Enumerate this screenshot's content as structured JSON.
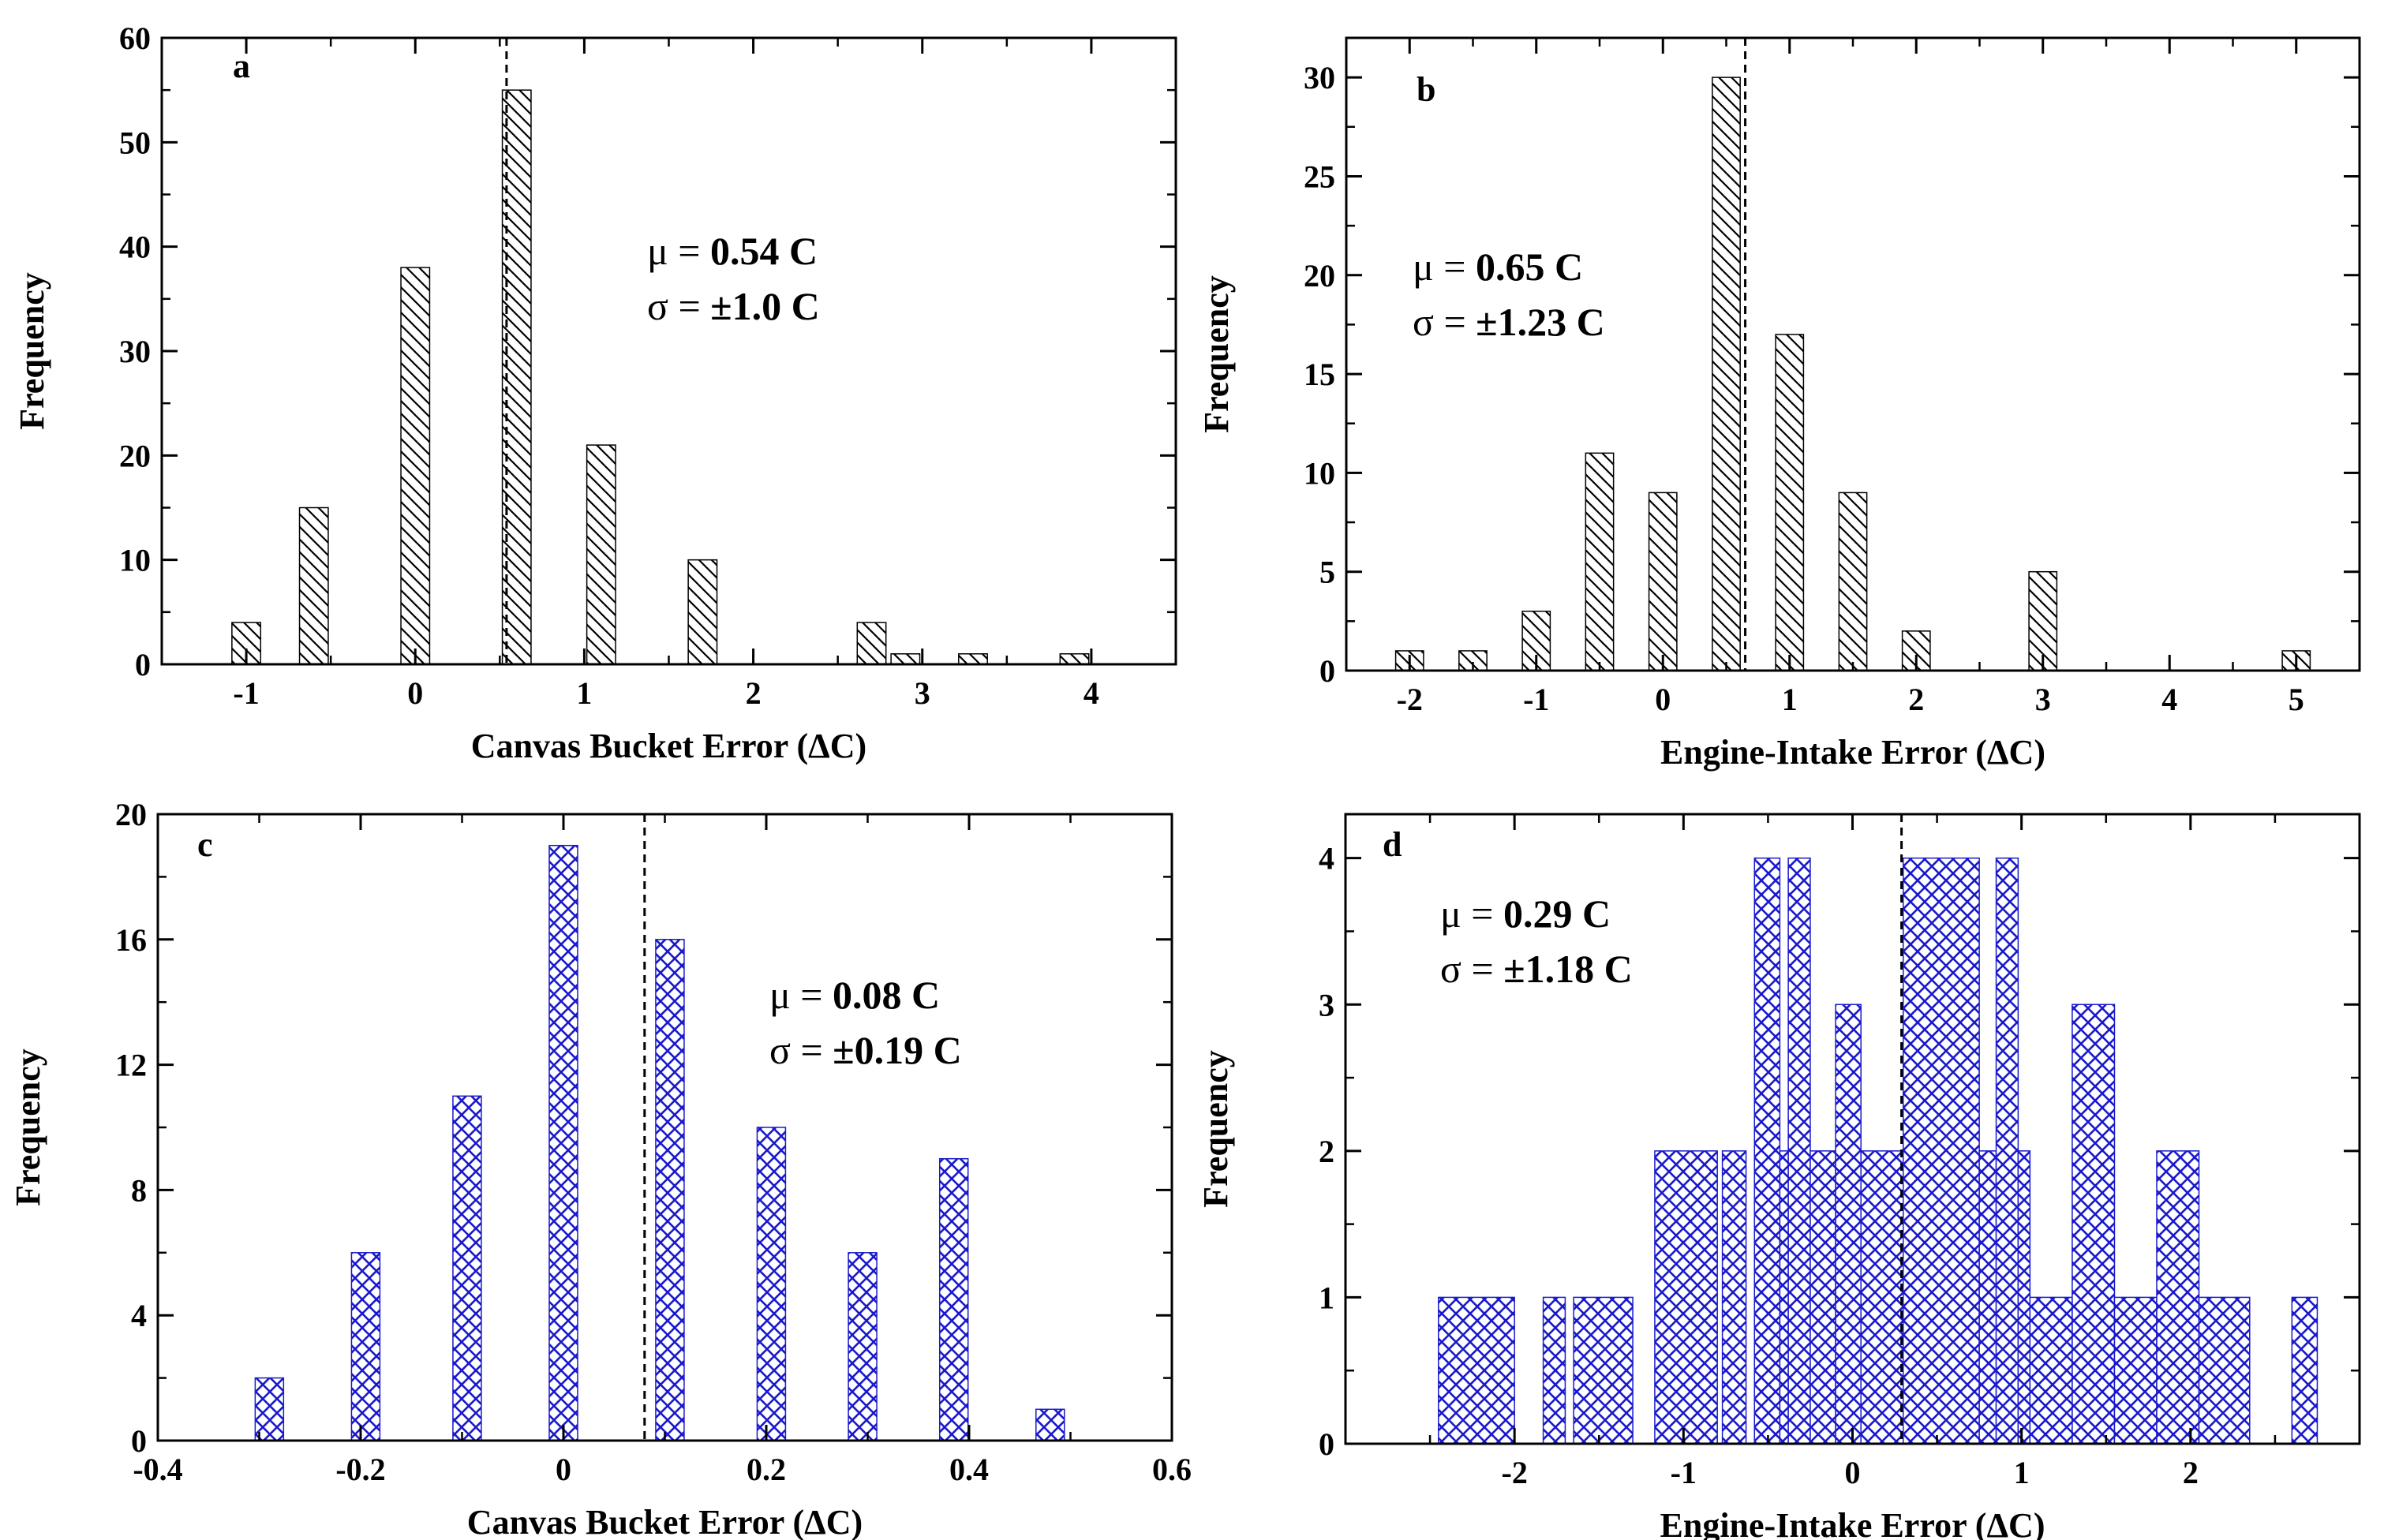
{
  "chart_data": [
    {
      "panel": "a",
      "type": "bar",
      "pattern": "hatch",
      "color": "#000000",
      "xlabel": "Canvas Bucket Error (ΔC)",
      "ylabel": "Frequency",
      "xlim": [
        -1.5,
        4.5
      ],
      "ylim": [
        0,
        60
      ],
      "xticks": [
        -1,
        0,
        1,
        2,
        3,
        4
      ],
      "xtick_labels": [
        "-1",
        "0",
        "1",
        "2",
        "3",
        "4"
      ],
      "yticks": [
        0,
        10,
        20,
        30,
        40,
        50,
        60
      ],
      "ytick_labels": [
        "0",
        "10",
        "20",
        "30",
        "40",
        "50",
        "60"
      ],
      "bar_width": 0.17,
      "bars": [
        {
          "x": -1.0,
          "y": 4
        },
        {
          "x": -0.6,
          "y": 15
        },
        {
          "x": 0.0,
          "y": 38
        },
        {
          "x": 0.6,
          "y": 55
        },
        {
          "x": 1.1,
          "y": 21
        },
        {
          "x": 1.7,
          "y": 10
        },
        {
          "x": 2.7,
          "y": 4
        },
        {
          "x": 2.9,
          "y": 1
        },
        {
          "x": 3.3,
          "y": 1
        },
        {
          "x": 3.9,
          "y": 1
        }
      ],
      "mean_line": 0.54,
      "stats": {
        "mu_label": "μ = ",
        "mu_value": "0.54 C",
        "sigma_label": "σ = ",
        "sigma_value": "±1.0 C"
      }
    },
    {
      "panel": "b",
      "type": "bar",
      "pattern": "hatch",
      "color": "#000000",
      "xlabel": "Engine-Intake Error (ΔC)",
      "ylabel": "Frequency",
      "xlim": [
        -2.5,
        5.5
      ],
      "ylim": [
        0,
        32
      ],
      "xticks": [
        -2,
        -1,
        0,
        1,
        2,
        3,
        4,
        5
      ],
      "xtick_labels": [
        "-2",
        "-1",
        "0",
        "1",
        "2",
        "3",
        "4",
        "5"
      ],
      "yticks": [
        0,
        5,
        10,
        15,
        20,
        25,
        30
      ],
      "ytick_labels": [
        "0",
        "5",
        "10",
        "15",
        "20",
        "25",
        "30"
      ],
      "bar_width": 0.22,
      "bars": [
        {
          "x": -2.0,
          "y": 1
        },
        {
          "x": -1.5,
          "y": 1
        },
        {
          "x": -1.0,
          "y": 3
        },
        {
          "x": -0.5,
          "y": 11
        },
        {
          "x": 0.0,
          "y": 9
        },
        {
          "x": 0.5,
          "y": 30
        },
        {
          "x": 1.0,
          "y": 17
        },
        {
          "x": 1.5,
          "y": 9
        },
        {
          "x": 2.0,
          "y": 2
        },
        {
          "x": 3.0,
          "y": 5
        },
        {
          "x": 5.0,
          "y": 1
        }
      ],
      "mean_line": 0.65,
      "stats": {
        "mu_label": "μ = ",
        "mu_value": "0.65 C",
        "sigma_label": "σ = ",
        "sigma_value": "±1.23 C"
      }
    },
    {
      "panel": "c",
      "type": "bar",
      "pattern": "crosshatch",
      "color": "#1a1acc",
      "xlabel": "Canvas Bucket Error (ΔC)",
      "ylabel": "Frequency",
      "xlim": [
        -0.4,
        0.6
      ],
      "ylim": [
        0,
        20
      ],
      "xticks": [
        -0.4,
        -0.2,
        0,
        0.2,
        0.4,
        0.6
      ],
      "xtick_labels": [
        "-0.4",
        "-0.2",
        "0",
        "0.2",
        "0.4",
        "0.6"
      ],
      "yticks": [
        0,
        4,
        8,
        12,
        16,
        20
      ],
      "ytick_labels": [
        "0",
        "4",
        "8",
        "12",
        "16",
        "20"
      ],
      "bar_width": 0.028,
      "bars": [
        {
          "x": -0.29,
          "y": 2
        },
        {
          "x": -0.195,
          "y": 6
        },
        {
          "x": -0.095,
          "y": 11
        },
        {
          "x": 0.0,
          "y": 19
        },
        {
          "x": 0.105,
          "y": 16
        },
        {
          "x": 0.205,
          "y": 10
        },
        {
          "x": 0.295,
          "y": 6
        },
        {
          "x": 0.385,
          "y": 9
        },
        {
          "x": 0.48,
          "y": 1
        }
      ],
      "mean_line": 0.08,
      "stats": {
        "mu_label": "μ = ",
        "mu_value": "0.08 C",
        "sigma_label": "σ = ",
        "sigma_value": "±0.19 C"
      }
    },
    {
      "panel": "d",
      "type": "bar",
      "pattern": "crosshatch",
      "color": "#1a1acc",
      "xlabel": "Engine-Intake Error (ΔC)",
      "ylabel": "Frequency",
      "xlim": [
        -3,
        3
      ],
      "ylim": [
        0,
        4.3
      ],
      "xticks": [
        -2,
        -1,
        0,
        1,
        2
      ],
      "xtick_labels": [
        "-2",
        "-1",
        "0",
        "1",
        "2"
      ],
      "yticks": [
        0,
        1,
        2,
        3,
        4
      ],
      "ytick_labels": [
        "0",
        "1",
        "2",
        "3",
        "4"
      ],
      "bars": [
        {
          "x0": -2.45,
          "x1": -2.0,
          "y": 1
        },
        {
          "x0": -1.83,
          "x1": -1.7,
          "y": 1
        },
        {
          "x0": -1.65,
          "x1": -1.3,
          "y": 1
        },
        {
          "x0": -1.17,
          "x1": -0.8,
          "y": 2
        },
        {
          "x0": -0.77,
          "x1": -0.63,
          "y": 2
        },
        {
          "x0": -0.58,
          "x1": -0.43,
          "y": 4
        },
        {
          "x0": -0.43,
          "x1": -0.38,
          "y": 2
        },
        {
          "x0": -0.38,
          "x1": -0.25,
          "y": 4
        },
        {
          "x0": -0.25,
          "x1": -0.1,
          "y": 2
        },
        {
          "x0": -0.1,
          "x1": 0.05,
          "y": 3
        },
        {
          "x0": 0.05,
          "x1": 0.3,
          "y": 2
        },
        {
          "x0": 0.3,
          "x1": 0.75,
          "y": 4
        },
        {
          "x0": 0.75,
          "x1": 0.85,
          "y": 2
        },
        {
          "x0": 0.85,
          "x1": 0.98,
          "y": 4
        },
        {
          "x0": 0.98,
          "x1": 1.05,
          "y": 2
        },
        {
          "x0": 1.05,
          "x1": 1.3,
          "y": 1
        },
        {
          "x0": 1.3,
          "x1": 1.55,
          "y": 3
        },
        {
          "x0": 1.55,
          "x1": 1.8,
          "y": 1
        },
        {
          "x0": 1.8,
          "x1": 2.05,
          "y": 2
        },
        {
          "x0": 2.05,
          "x1": 2.35,
          "y": 1
        },
        {
          "x0": 2.6,
          "x1": 2.75,
          "y": 1
        }
      ],
      "mean_line": 0.29,
      "stats": {
        "mu_label": "μ = ",
        "mu_value": "0.29 C",
        "sigma_label": "σ = ",
        "sigma_value": "±1.18 C"
      }
    }
  ]
}
